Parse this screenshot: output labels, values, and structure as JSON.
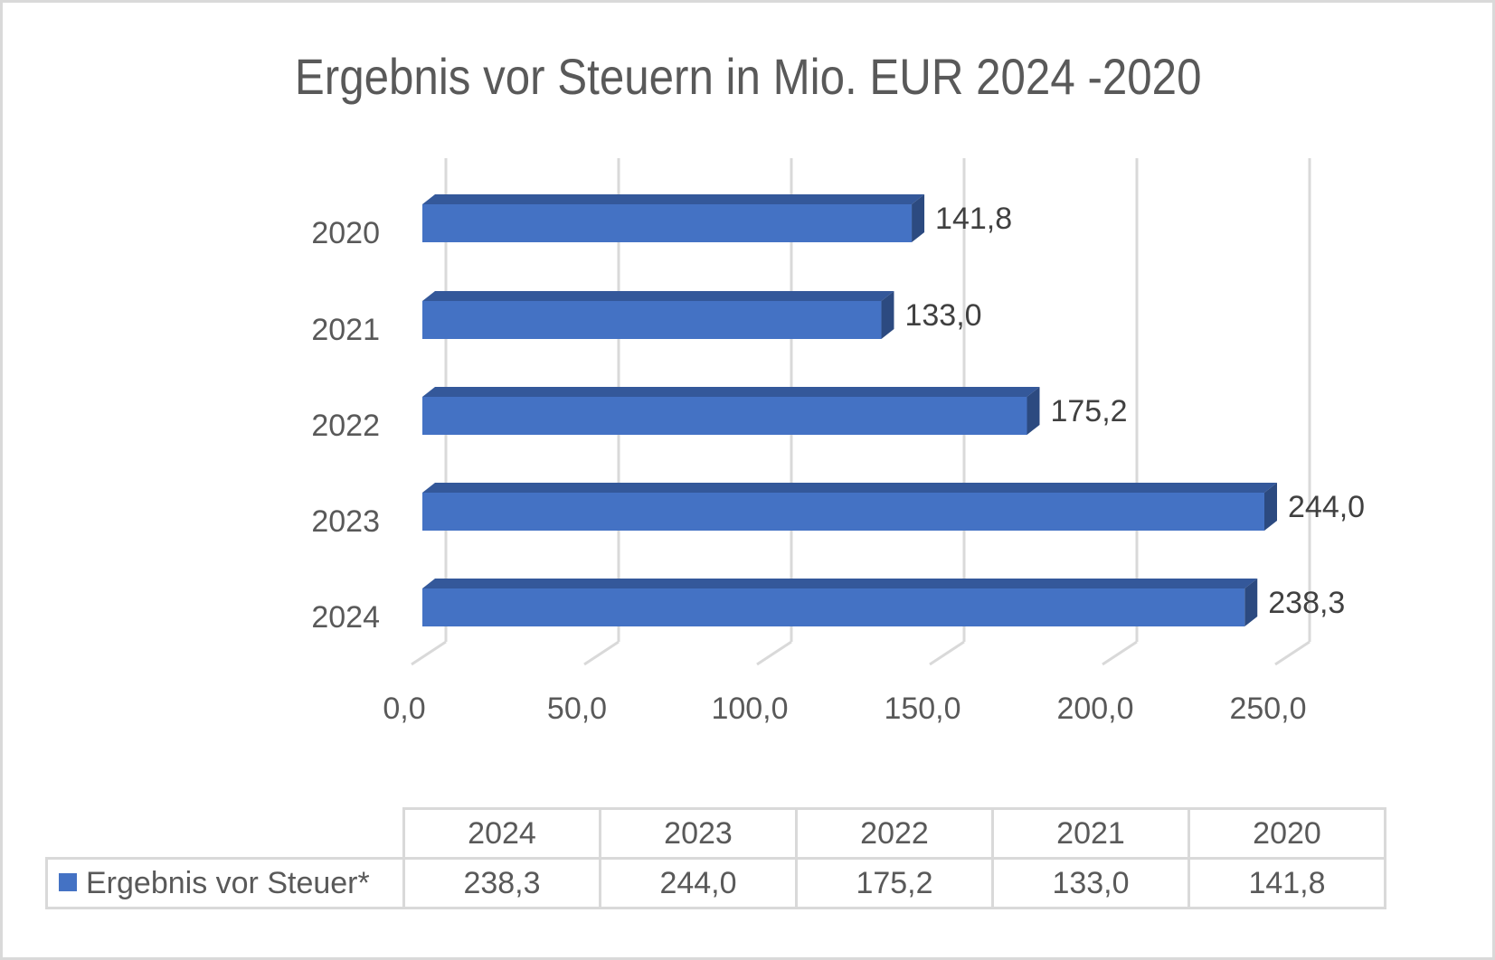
{
  "chart_data": {
    "type": "bar",
    "orientation": "horizontal",
    "style": "3d-clustered-bar",
    "title": "Ergebnis vor Steuern in Mio. EUR 2024 -2020",
    "categories": [
      "2020",
      "2021",
      "2022",
      "2023",
      "2024"
    ],
    "series": [
      {
        "name": "Ergebnis vor Steuer*",
        "color": "#4472c4",
        "values": [
          141.8,
          133.0,
          175.2,
          244.0,
          238.3
        ],
        "labels": [
          "141,8",
          "133,0",
          "175,2",
          "244,0",
          "238,3"
        ]
      }
    ],
    "xlabel": "",
    "ylabel": "",
    "xlim": [
      0,
      250
    ],
    "x_ticks": [
      "0,0",
      "50,0",
      "100,0",
      "150,0",
      "200,0",
      "250,0"
    ],
    "grid": true,
    "legend_position": "data-table",
    "data_table": {
      "columns": [
        "2024",
        "2023",
        "2022",
        "2021",
        "2020"
      ],
      "rows": [
        {
          "legend_key": "Ergebnis vor Steuer*",
          "values": [
            "238,3",
            "244,0",
            "175,2",
            "133,0",
            "141,8"
          ]
        }
      ]
    }
  },
  "chart": {
    "title": "Ergebnis vor Steuern in Mio. EUR 2024 -2020",
    "bar_color": "#4472c4",
    "bar_top_color": "#34589a",
    "bar_side_color": "#2c4a80",
    "grid_color": "#d9d9d9",
    "text_color": "#595959"
  },
  "table": {
    "headers": [
      "2024",
      "2023",
      "2022",
      "2021",
      "2020"
    ],
    "series_label": "Ergebnis vor Steuer*",
    "values": [
      "238,3",
      "244,0",
      "175,2",
      "133,0",
      "141,8"
    ]
  }
}
